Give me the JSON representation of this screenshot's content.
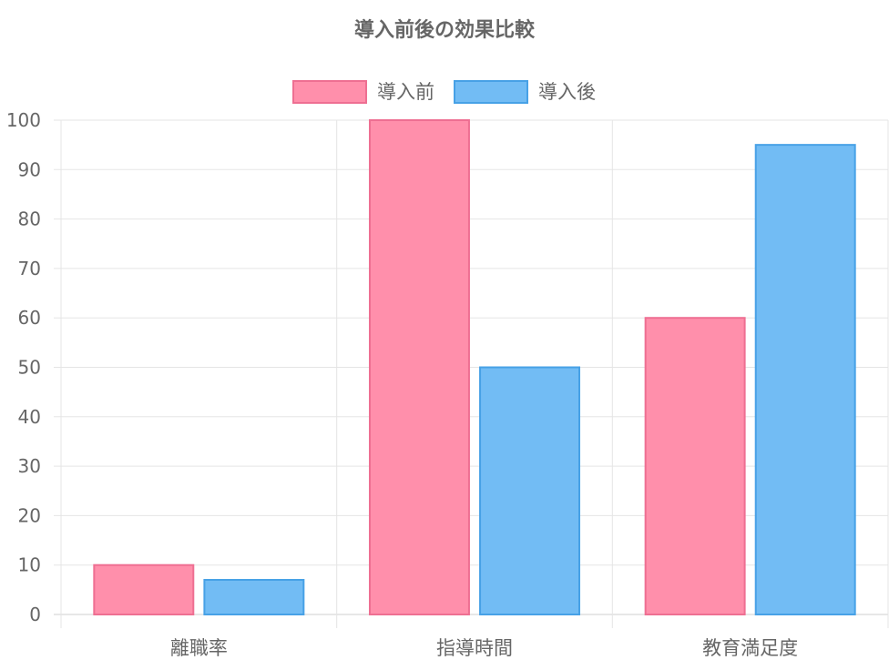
{
  "chart_data": {
    "type": "bar",
    "title": "導入前後の効果比較",
    "categories": [
      "離職率",
      "指導時間",
      "教育満足度"
    ],
    "series": [
      {
        "name": "導入前",
        "values": [
          10,
          100,
          60
        ],
        "fill": "#ff8fab",
        "stroke": "#ee6f92"
      },
      {
        "name": "導入後",
        "values": [
          7,
          50,
          95
        ],
        "fill": "#72bcf4",
        "stroke": "#47a1e6"
      }
    ],
    "ylim": [
      0,
      100
    ],
    "yticks": [
      0,
      10,
      20,
      30,
      40,
      50,
      60,
      70,
      80,
      90,
      100
    ],
    "grid": true,
    "legend_position": "top-center"
  }
}
